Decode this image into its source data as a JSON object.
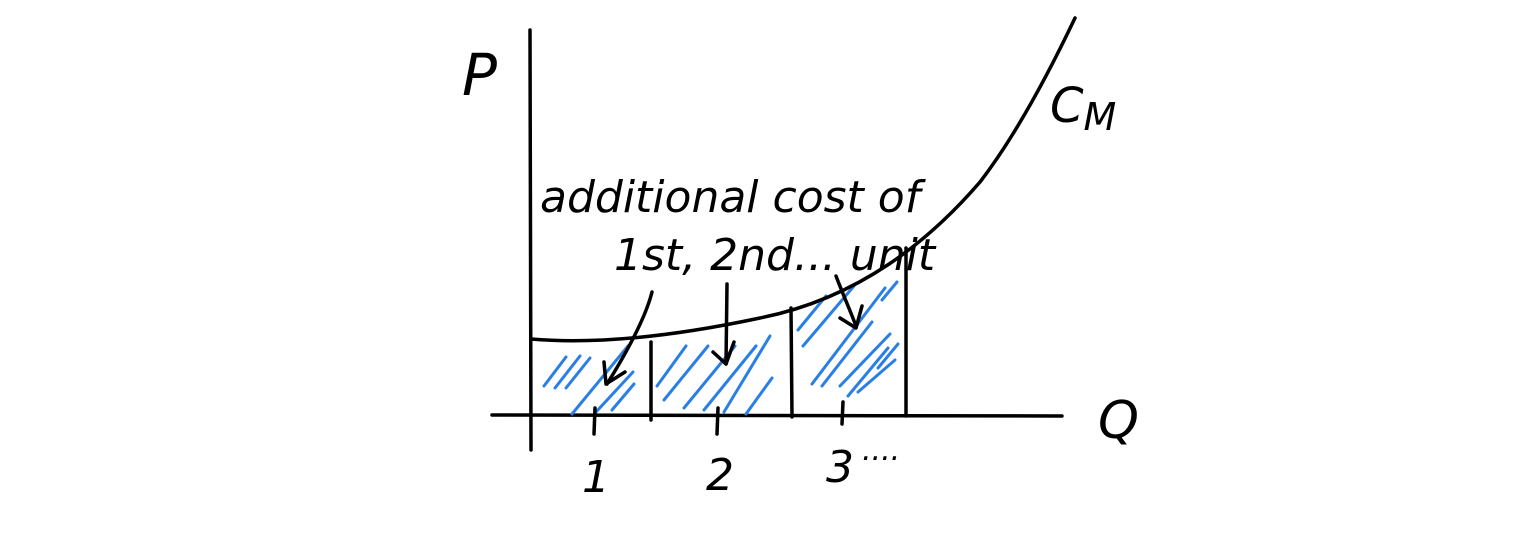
{
  "axes": {
    "y_label": "P",
    "x_label": "Q"
  },
  "curve": {
    "label": "C",
    "label_subscript": "M"
  },
  "annotation": {
    "line1": "additional cost of",
    "line2": "1st, 2nd... unit"
  },
  "ticks": [
    "1",
    "2",
    "3",
    "...."
  ],
  "colors": {
    "ink": "#000000",
    "hatch": "#2a7fe6",
    "background": "#ffffff"
  }
}
